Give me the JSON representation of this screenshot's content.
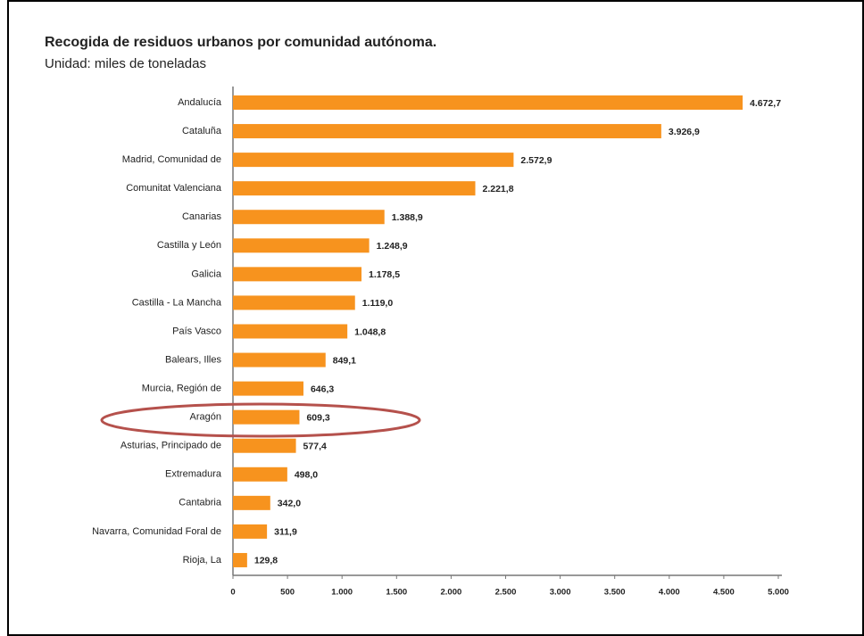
{
  "chart_data": {
    "type": "bar",
    "orientation": "horizontal",
    "title": "Recogida de residuos urbanos por comunidad autónoma.",
    "subtitle": "Unidad: miles  de toneladas",
    "categories": [
      "Andalucía",
      "Cataluña",
      "Madrid, Comunidad de",
      "Comunitat Valenciana",
      "Canarias",
      "Castilla y León",
      "Galicia",
      "Castilla - La Mancha",
      "País Vasco",
      "Balears, Illes",
      "Murcia, Región de",
      "Aragón",
      "Asturias, Principado de",
      "Extremadura",
      "Cantabria",
      "Navarra, Comunidad Foral de",
      "Rioja, La"
    ],
    "values": [
      4672.7,
      3926.9,
      2572.9,
      2221.8,
      1388.9,
      1248.9,
      1178.5,
      1119.0,
      1048.8,
      849.1,
      646.3,
      609.3,
      577.4,
      498.0,
      342.0,
      311.9,
      129.8
    ],
    "value_labels": [
      "4.672,7",
      "3.926,9",
      "2.572,9",
      "2.221,8",
      "1.388,9",
      "1.248,9",
      "1.178,5",
      "1.119,0",
      "1.048,8",
      "849,1",
      "646,3",
      "609,3",
      "577,4",
      "498,0",
      "342,0",
      "311,9",
      "129,8"
    ],
    "color": "#f7931e",
    "xlim": [
      0,
      5000
    ],
    "xticks": [
      0,
      500,
      {
        "value": 1000,
        "label": "1.000"
      },
      {
        "value": 1500,
        "label": "1.500"
      },
      {
        "value": 2000,
        "label": "2.000"
      },
      {
        "value": 2500,
        "label": "2.500"
      },
      {
        "value": 3000,
        "label": "3.000"
      },
      {
        "value": 3500,
        "label": "3.500"
      },
      {
        "value": 4000,
        "label": "4.000"
      },
      {
        "value": 4500,
        "label": "4.500"
      },
      {
        "value": 5000,
        "label": "5.000"
      }
    ],
    "grid": false
  }
}
